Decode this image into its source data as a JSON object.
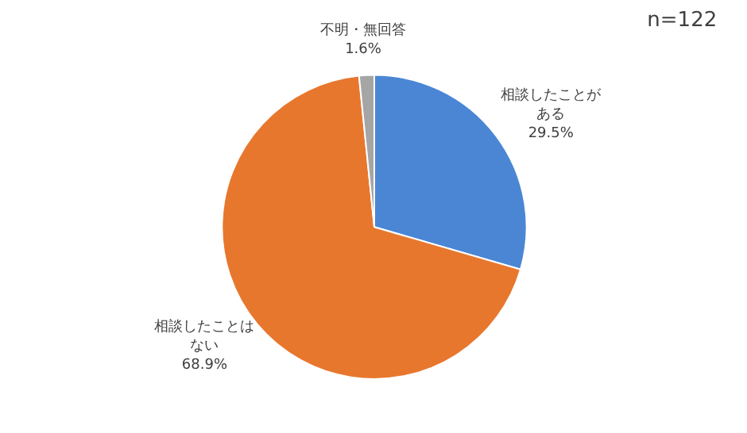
{
  "chart_data": {
    "type": "pie",
    "annotations": [
      "n=122"
    ],
    "categories": [
      "相談したことがある",
      "相談したことはない",
      "不明・無回答"
    ],
    "values": [
      29.5,
      68.9,
      1.6
    ],
    "colors": [
      "#4a86d4",
      "#e8772e",
      "#a5a5a5"
    ],
    "value_labels": [
      "29.5%",
      "68.9%",
      "1.6%"
    ]
  }
}
